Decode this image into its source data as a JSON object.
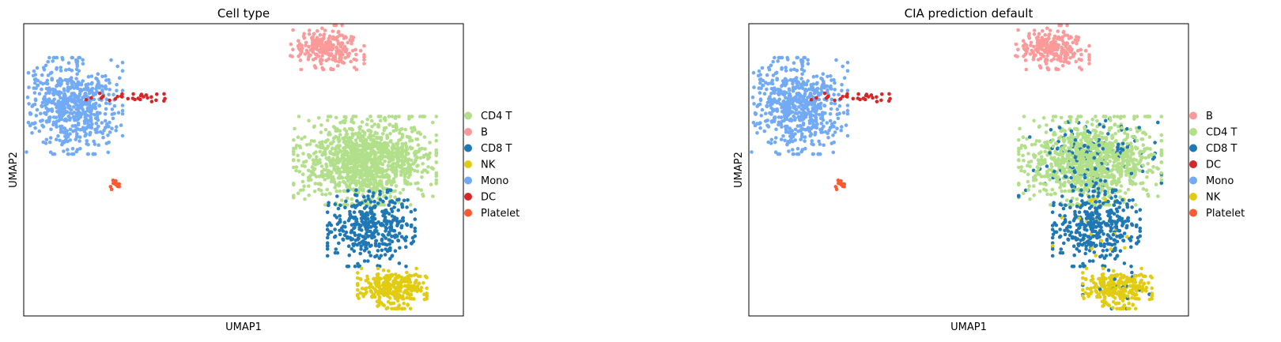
{
  "chart_data": [
    {
      "type": "scatter",
      "title": "Cell type",
      "xlabel": "UMAP1",
      "ylabel": "UMAP2",
      "xlim": [
        -9.5,
        11.5
      ],
      "ylim": [
        -8.5,
        7.5
      ],
      "grid": false,
      "ticks": false,
      "legend_position": "right",
      "legend": [
        {
          "label": "CD4 T",
          "color": "#b2df8a"
        },
        {
          "label": "B",
          "color": "#fb9a99"
        },
        {
          "label": "CD8 T",
          "color": "#1f78b4"
        },
        {
          "label": "NK",
          "color": "#e2cc12"
        },
        {
          "label": "Mono",
          "color": "#72aaf5"
        },
        {
          "label": "DC",
          "color": "#d62728"
        },
        {
          "label": "Platelet",
          "color": "#fb5a32"
        }
      ],
      "clusters": [
        {
          "label": "B",
          "cx": 5.0,
          "cy": 6.2,
          "sx": 0.8,
          "sy": 0.55,
          "n": 220
        },
        {
          "label": "Mono",
          "cx": -7.2,
          "cy": 3.0,
          "sx": 1.1,
          "sy": 1.2,
          "n": 620
        },
        {
          "label": "DC",
          "cx": -4.7,
          "cy": 3.5,
          "sx": 1.2,
          "sy": 0.12,
          "n": 30
        },
        {
          "label": "Platelet",
          "cx": -5.1,
          "cy": -1.35,
          "sx": 0.12,
          "sy": 0.15,
          "n": 14
        },
        {
          "label": "CD4 T",
          "cx": 6.8,
          "cy": 0.0,
          "sx": 1.55,
          "sy": 1.1,
          "n": 1200
        },
        {
          "label": "CD8 T",
          "cx": 7.1,
          "cy": -3.7,
          "sx": 0.95,
          "sy": 0.95,
          "n": 380
        },
        {
          "label": "NK",
          "cx": 8.1,
          "cy": -7.0,
          "sx": 0.75,
          "sy": 0.5,
          "n": 300
        }
      ],
      "mixing": []
    },
    {
      "type": "scatter",
      "title": "CIA prediction default",
      "xlabel": "UMAP1",
      "ylabel": "UMAP2",
      "xlim": [
        -9.5,
        11.5
      ],
      "ylim": [
        -8.5,
        7.5
      ],
      "grid": false,
      "ticks": false,
      "legend_position": "right",
      "legend": [
        {
          "label": "B",
          "color": "#fb9a99"
        },
        {
          "label": "CD4 T",
          "color": "#b2df8a"
        },
        {
          "label": "CD8 T",
          "color": "#1f78b4"
        },
        {
          "label": "DC",
          "color": "#d62728"
        },
        {
          "label": "Mono",
          "color": "#72aaf5"
        },
        {
          "label": "NK",
          "color": "#e2cc12"
        },
        {
          "label": "Platelet",
          "color": "#fb5a32"
        }
      ],
      "clusters": [
        {
          "label": "B",
          "cx": 5.0,
          "cy": 6.2,
          "sx": 0.8,
          "sy": 0.55,
          "n": 220
        },
        {
          "label": "Mono",
          "cx": -7.2,
          "cy": 3.0,
          "sx": 1.1,
          "sy": 1.2,
          "n": 620
        },
        {
          "label": "DC",
          "cx": -4.7,
          "cy": 3.5,
          "sx": 1.2,
          "sy": 0.12,
          "n": 30
        },
        {
          "label": "Platelet",
          "cx": -5.1,
          "cy": -1.35,
          "sx": 0.12,
          "sy": 0.15,
          "n": 14
        },
        {
          "label": "CD4 T",
          "cx": 6.8,
          "cy": 0.0,
          "sx": 1.55,
          "sy": 1.1,
          "n": 1200
        },
        {
          "label": "CD8 T",
          "cx": 7.1,
          "cy": -3.7,
          "sx": 0.95,
          "sy": 0.95,
          "n": 380
        },
        {
          "label": "NK",
          "cx": 8.1,
          "cy": -7.0,
          "sx": 0.75,
          "sy": 0.5,
          "n": 300
        }
      ],
      "mixing": [
        {
          "from": "CD4 T",
          "to": "CD8 T",
          "fraction": 0.14
        },
        {
          "from": "CD8 T",
          "to": "NK",
          "fraction": 0.07
        },
        {
          "from": "NK",
          "to": "CD8 T",
          "fraction": 0.05
        }
      ]
    }
  ]
}
